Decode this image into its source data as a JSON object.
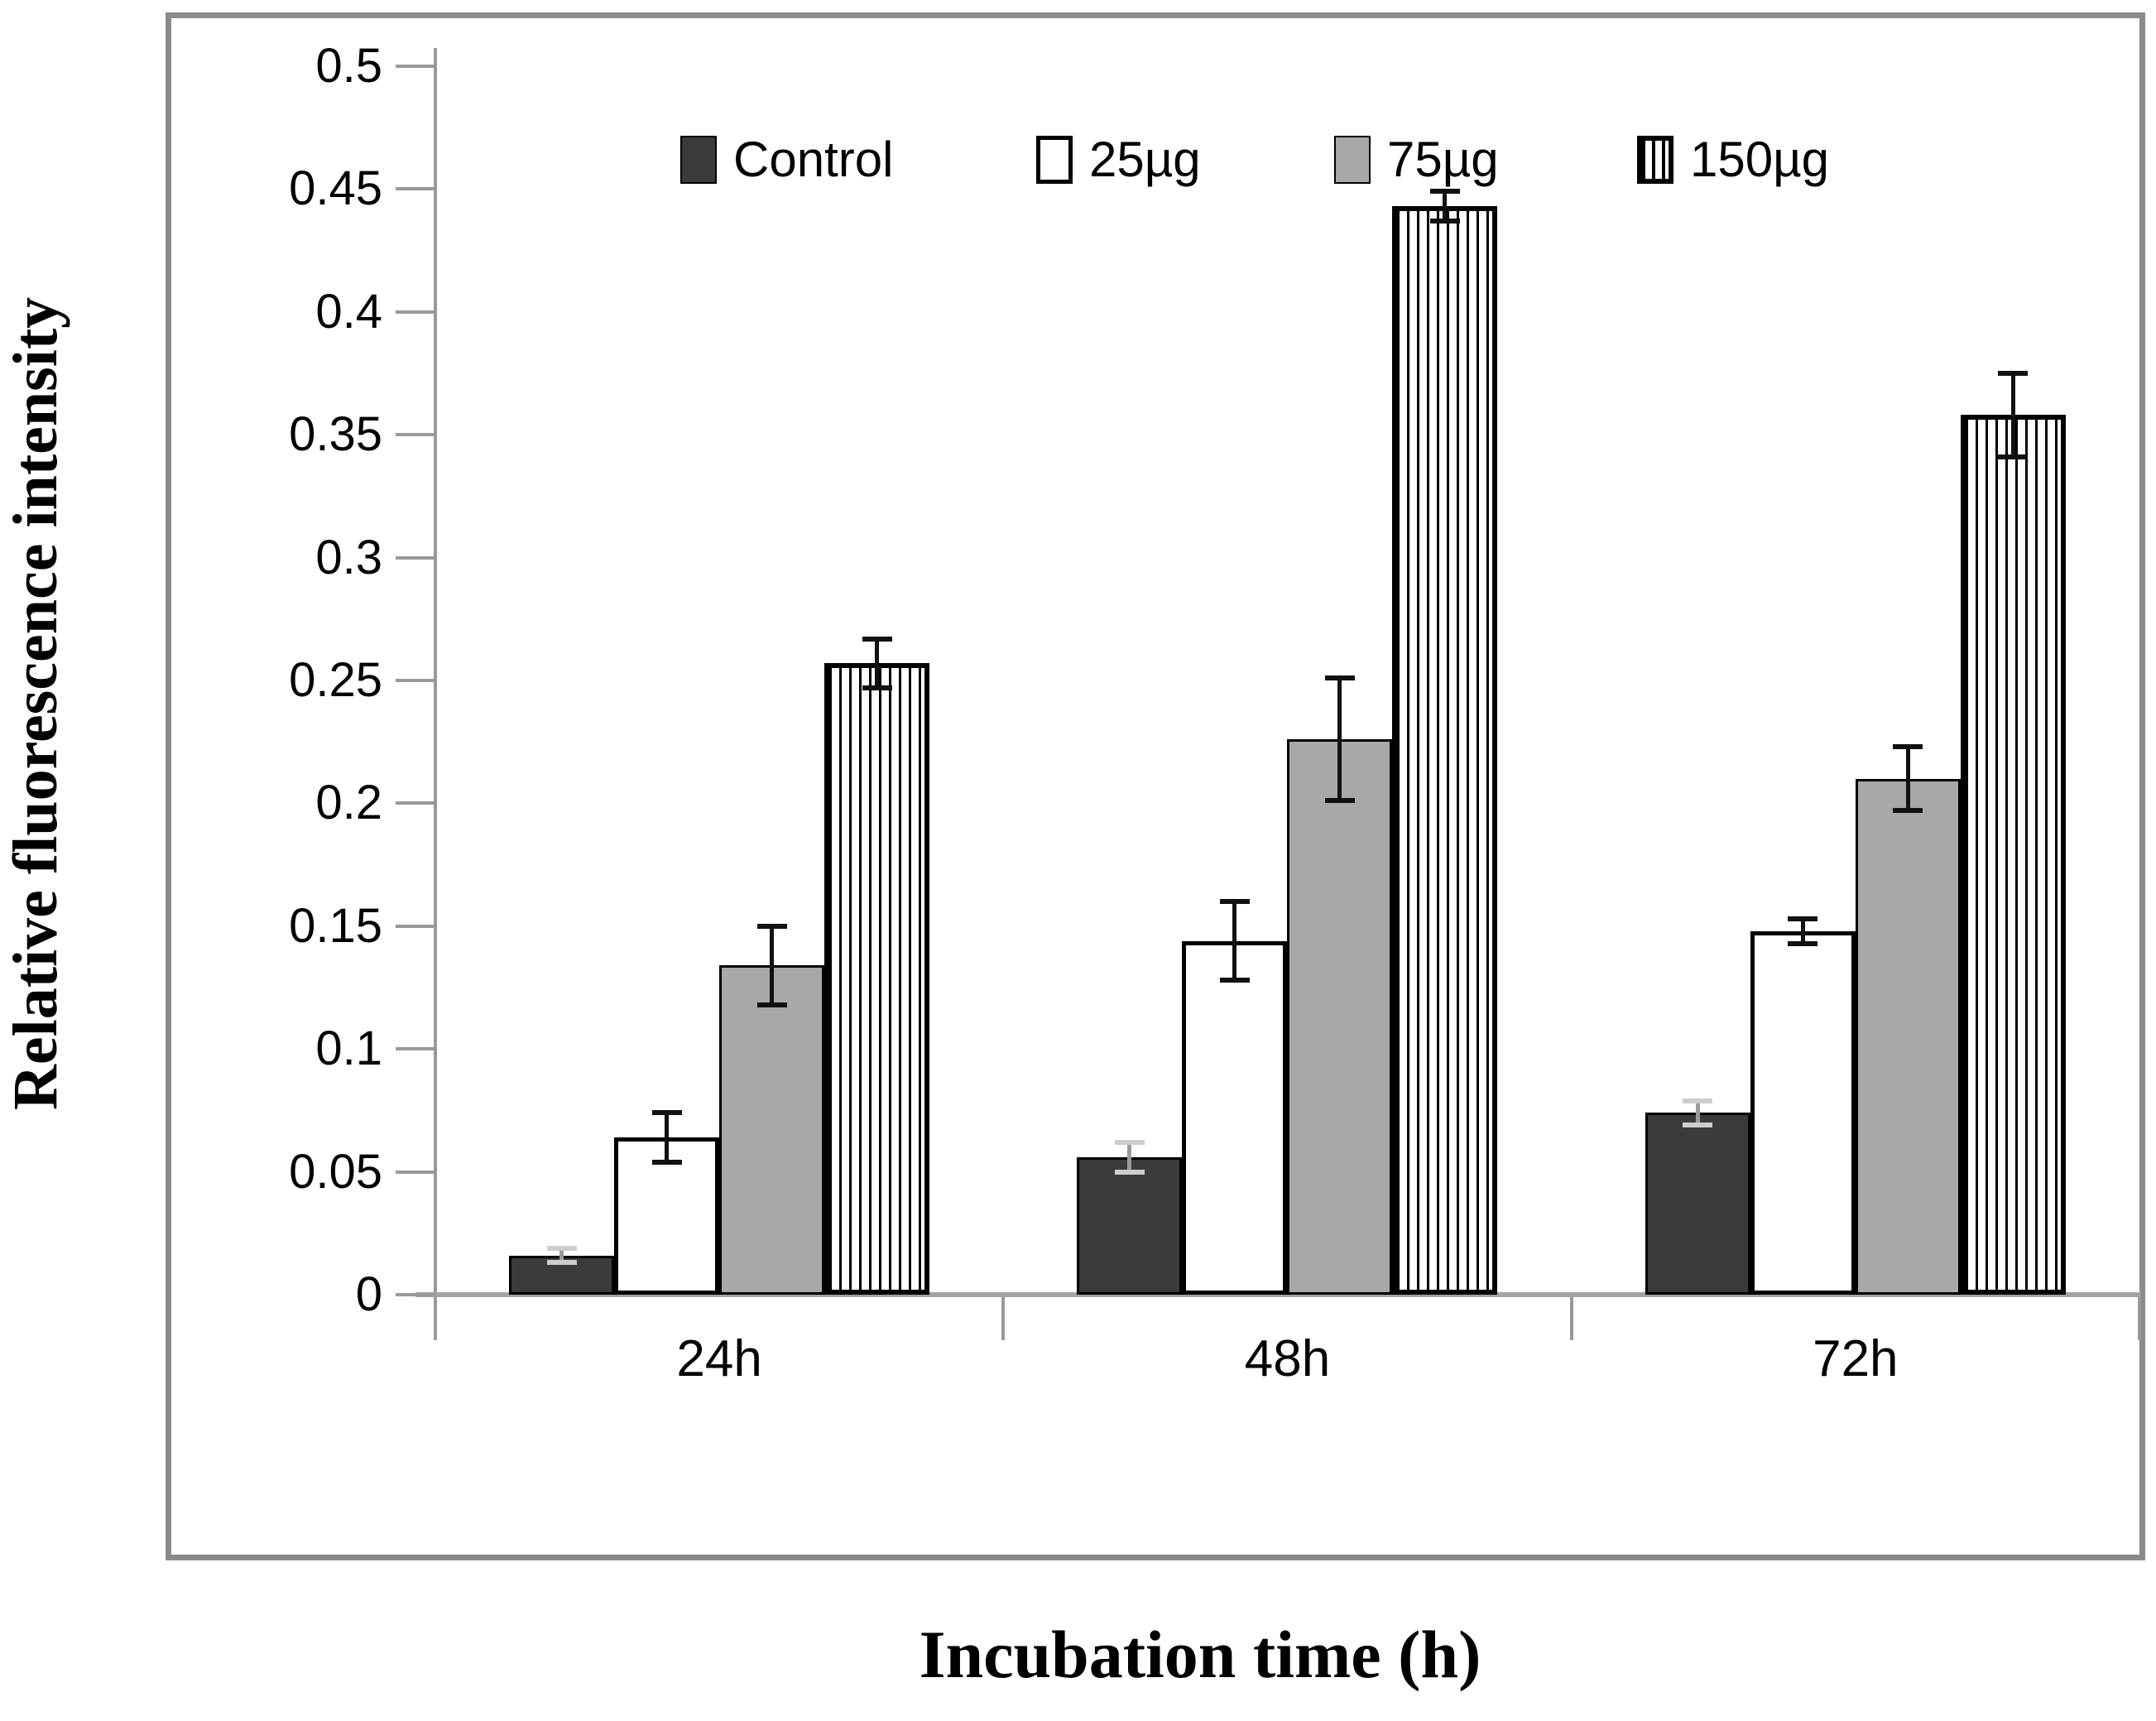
{
  "figure": {
    "y_axis_title": "Relative fluorescence intensity",
    "x_axis_title": "Incubation time (h)"
  },
  "chart_data": {
    "type": "bar",
    "title": "",
    "xlabel": "Incubation time (h)",
    "ylabel": "Relative fluorescence intensity",
    "categories": [
      "24h",
      "48h",
      "72h"
    ],
    "series": [
      {
        "name": "Control",
        "swatch": "dark-gray-solid",
        "fill": "#3b3b3b",
        "values": [
          0.016,
          0.056,
          0.074
        ],
        "errors": [
          0.003,
          0.006,
          0.005
        ]
      },
      {
        "name": "25µg",
        "swatch": "white-solid",
        "fill": "#ffffff",
        "values": [
          0.064,
          0.144,
          0.148
        ],
        "errors": [
          0.01,
          0.016,
          0.005
        ]
      },
      {
        "name": "75µg",
        "swatch": "gray-solid",
        "fill": "#a8a8a8",
        "values": [
          0.134,
          0.226,
          0.21
        ],
        "errors": [
          0.016,
          0.025,
          0.013
        ]
      },
      {
        "name": "150µg",
        "swatch": "vertical-stripes",
        "fill": "#ffffff",
        "values": [
          0.257,
          0.443,
          0.358
        ],
        "errors": [
          0.01,
          0.006,
          0.017
        ]
      }
    ],
    "ylim": [
      0,
      0.5
    ],
    "ytick_step": 0.05,
    "ytick_labels": [
      "0",
      "0.05",
      "0.1",
      "0.15",
      "0.2",
      "0.25",
      "0.3",
      "0.35",
      "0.4",
      "0.45",
      "0.5"
    ],
    "legend_position": "top-center-inside",
    "grid": false,
    "error_bars": true,
    "colors": {
      "frame_border": "#8a8a8a",
      "axis_lines": "#999999",
      "control_fill": "#3b3b3b",
      "gray_fill": "#a8a8a8",
      "bar_outline": "#000000"
    }
  }
}
